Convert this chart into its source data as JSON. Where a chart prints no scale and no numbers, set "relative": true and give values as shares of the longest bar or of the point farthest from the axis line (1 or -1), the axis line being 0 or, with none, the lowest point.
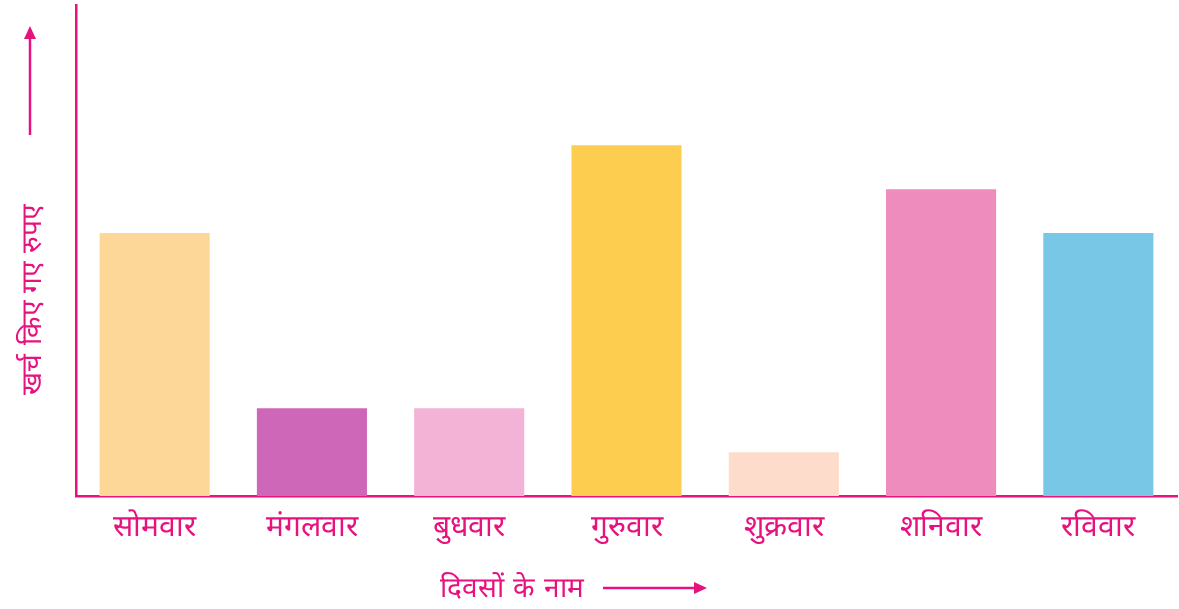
{
  "chart_data": {
    "type": "bar",
    "relative": true,
    "categories": [
      "सोमवार",
      "मंगलवार",
      "बुधवार",
      "गुरुवार",
      "शुक्रवार",
      "शनिवार",
      "रविवार"
    ],
    "values": [
      0.75,
      0.25,
      0.25,
      1,
      0.125,
      0.875,
      0.75
    ],
    "colors": [
      "#fdd797",
      "#cf67b9",
      "#f3b3d6",
      "#fdcd4f",
      "#fddccc",
      "#ed8cbd",
      "#79c7e7"
    ],
    "xlabel": "दिवसों के नाम",
    "ylabel": "खर्च किए गए रुपए"
  }
}
